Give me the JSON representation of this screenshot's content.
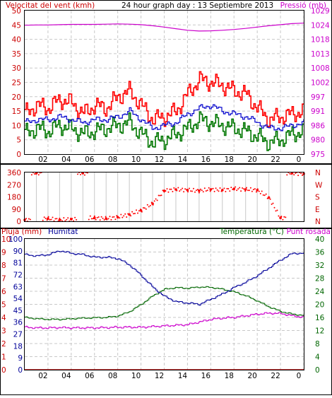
{
  "colors": {
    "wind_axis": "#cc0000",
    "pressure": "#cc00cc",
    "wind_gust": "#ff0000",
    "wind_avg": "#007700",
    "wind_mean": "#0000cc",
    "direction": "#ff0000",
    "rain": "#cc0000",
    "humidity": "#000099",
    "temperature": "#006600",
    "dewpoint": "#cc00cc",
    "grid": "#c8c8c8",
    "frame": "#000000"
  },
  "chart_data": [
    {
      "type": "line",
      "id": "wind-pressure",
      "title": "24 hour graph day : 13 Septiembre 2013",
      "left_label": "Velocitat del vent (kmh)",
      "right_label": "Pressió (mb)",
      "x_ticks": [
        "02",
        "04",
        "06",
        "08",
        "10",
        "12",
        "14",
        "16",
        "18",
        "20",
        "22",
        "0"
      ],
      "left_ticks": [
        "0",
        "5",
        "10",
        "15",
        "20",
        "25",
        "30",
        "35",
        "40",
        "45",
        "50"
      ],
      "right_ticks": [
        "975",
        "980",
        "986",
        "991",
        "997",
        "1002",
        "1008",
        "1013",
        "1018",
        "1024",
        "1029"
      ],
      "ylim": [
        0,
        50
      ],
      "y2lim": [
        975,
        1029
      ],
      "x_hours": [
        0,
        1,
        2,
        3,
        4,
        5,
        6,
        7,
        8,
        9,
        10,
        11,
        12,
        13,
        14,
        15,
        16,
        17,
        18,
        19,
        20,
        21,
        22,
        23,
        24
      ],
      "series": [
        {
          "key": "pressure",
          "values": [
            1023.5,
            1023.6,
            1023.6,
            1023.7,
            1023.8,
            1023.8,
            1023.8,
            1023.9,
            1024,
            1023.9,
            1023.7,
            1023.3,
            1022.8,
            1022.2,
            1021.6,
            1021.3,
            1021.4,
            1021.6,
            1021.9,
            1022.3,
            1022.8,
            1023.3,
            1023.7,
            1024.1,
            1024.3
          ]
        },
        {
          "key": "wind_gust",
          "values": [
            14,
            17,
            16,
            19,
            18,
            14,
            17,
            16,
            20,
            22,
            17,
            12,
            13,
            15,
            21,
            26,
            25,
            24,
            22,
            21,
            16,
            12,
            13,
            14,
            15
          ]
        },
        {
          "key": "wind_mean",
          "values": [
            11,
            12,
            12,
            13,
            12,
            11,
            12,
            12,
            13,
            15,
            12,
            9,
            10,
            11,
            14,
            16,
            17,
            15,
            14,
            13,
            11,
            9,
            9,
            10,
            11
          ]
        },
        {
          "key": "wind_avg",
          "values": [
            7,
            9,
            8,
            10,
            9,
            7,
            8,
            9,
            10,
            11,
            7,
            4,
            5,
            7,
            9,
            12,
            11,
            10,
            9,
            8,
            6,
            4,
            5,
            7,
            8
          ]
        }
      ]
    },
    {
      "type": "scatter",
      "id": "direction",
      "left_ticks": [
        "0",
        "90",
        "180",
        "270",
        "360"
      ],
      "right_ticks": [
        "N",
        "E",
        "S",
        "W",
        "N"
      ],
      "ylim": [
        0,
        360
      ],
      "x_hours": [
        0,
        1,
        2,
        3,
        4,
        5,
        6,
        7,
        8,
        9,
        10,
        11,
        12,
        13,
        14,
        15,
        16,
        17,
        18,
        19,
        20,
        21,
        22,
        23,
        24
      ],
      "values": [
        10,
        355,
        20,
        10,
        15,
        355,
        25,
        20,
        30,
        50,
        80,
        130,
        225,
        235,
        230,
        225,
        235,
        230,
        240,
        235,
        230,
        175,
        25,
        355,
        350
      ]
    },
    {
      "type": "line",
      "id": "rain-hum-temp",
      "rain_label": "Pluja (mm)",
      "humidity_label": "Humitat",
      "temperature_label": "Temperatura (°C)",
      "dewpoint_label": "Punt rosada",
      "x_ticks": [
        "02",
        "04",
        "06",
        "08",
        "10",
        "12",
        "14",
        "16",
        "18",
        "20",
        "22",
        "0"
      ],
      "rain_ticks": [
        "0",
        "1",
        "2",
        "3",
        "4",
        "5",
        "6",
        "7",
        "8",
        "9",
        "10"
      ],
      "humidity_ticks": [
        "0",
        "9",
        "18",
        "27",
        "36",
        "45",
        "54",
        "63",
        "72",
        "81",
        "90",
        "100"
      ],
      "temperature_ticks": [
        "0",
        "4",
        "8",
        "12",
        "16",
        "20",
        "24",
        "28",
        "32",
        "36",
        "40"
      ],
      "rain_ylim": [
        0,
        10
      ],
      "humidity_ylim": [
        0,
        100
      ],
      "temperature_ylim": [
        0,
        40
      ],
      "x_hours": [
        0,
        1,
        2,
        3,
        4,
        5,
        6,
        7,
        8,
        9,
        10,
        11,
        12,
        13,
        14,
        15,
        16,
        17,
        18,
        19,
        20,
        21,
        22,
        23,
        24
      ],
      "series": [
        {
          "key": "rain",
          "values": [
            0,
            0,
            0,
            0,
            0,
            0,
            0,
            0,
            0,
            0,
            0,
            0,
            0,
            0,
            0,
            0,
            0,
            0,
            0,
            0,
            0,
            0,
            0,
            0,
            0
          ]
        },
        {
          "key": "humidity",
          "values": [
            88,
            87,
            88,
            91,
            89,
            88,
            86,
            86,
            85,
            80,
            72,
            63,
            56,
            52,
            51,
            50,
            54,
            58,
            63,
            67,
            72,
            78,
            84,
            89,
            89
          ]
        },
        {
          "key": "temperature",
          "values": [
            16,
            15.6,
            15.4,
            15.4,
            15.6,
            15.8,
            15.9,
            16,
            16.4,
            17.8,
            20,
            22.6,
            24.6,
            25.1,
            24.9,
            25.3,
            25.2,
            24.6,
            23.8,
            22.6,
            21,
            19.2,
            17.8,
            17,
            16.6
          ]
        },
        {
          "key": "dewpoint",
          "values": [
            13,
            12.8,
            12.8,
            12.9,
            12.8,
            12.8,
            12.8,
            12.9,
            13,
            13,
            13,
            13.2,
            13.4,
            13.6,
            13.8,
            14.6,
            15.4,
            15.8,
            16,
            16.5,
            17,
            17.3,
            17.2,
            16.5,
            16
          ]
        }
      ]
    }
  ]
}
